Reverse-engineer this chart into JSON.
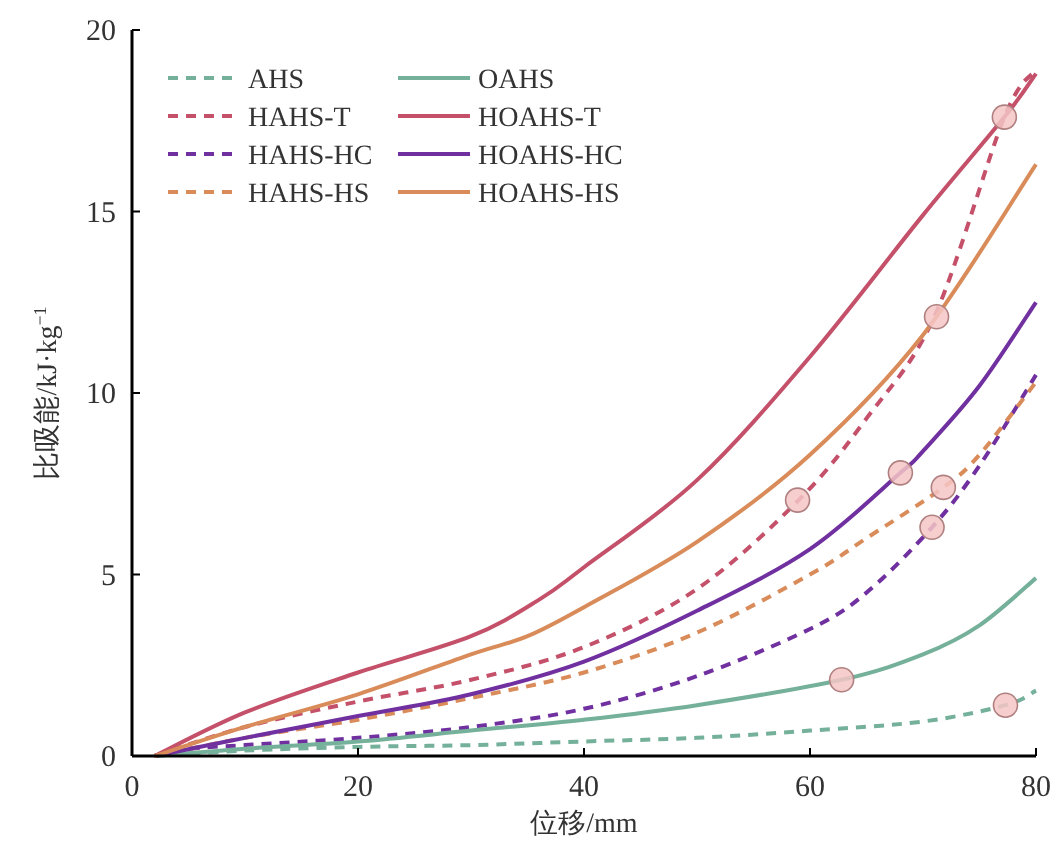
{
  "chart_data": {
    "type": "line",
    "xlabel": "位移/mm",
    "ylabel": "比吸能/kJ·kg$^{−1}$",
    "xlim": [
      0,
      80
    ],
    "ylim": [
      0,
      20
    ],
    "xticks": [
      0,
      20,
      40,
      60,
      80
    ],
    "yticks": [
      0,
      5,
      10,
      15,
      20
    ],
    "grid": false,
    "legend": "top left",
    "series": [
      {
        "name": "AHS",
        "color": "#74b09a",
        "line_style": "dashed",
        "x": [
          2,
          10,
          20,
          30,
          40,
          50,
          60,
          70,
          77.3,
          80
        ],
        "values": [
          0,
          0.15,
          0.25,
          0.3,
          0.4,
          0.5,
          0.7,
          0.95,
          1.4,
          1.8
        ]
      },
      {
        "name": "HAHS-T",
        "color": "#c4506a",
        "line_style": "dashed",
        "x": [
          2,
          10,
          20,
          30,
          40,
          50,
          59,
          65,
          71,
          77.2,
          80
        ],
        "values": [
          0,
          0.8,
          1.5,
          2.1,
          3.0,
          4.6,
          7.05,
          9.3,
          12.1,
          17.6,
          18.9
        ]
      },
      {
        "name": "HAHS-HC",
        "color": "#7030a0",
        "line_style": "dashed",
        "x": [
          2,
          5,
          10,
          20,
          30,
          40,
          50,
          60,
          65,
          70.8,
          75,
          80
        ],
        "values": [
          0,
          0.2,
          0.3,
          0.5,
          0.8,
          1.3,
          2.2,
          3.5,
          4.5,
          6.3,
          8.0,
          10.5
        ]
      },
      {
        "name": "HAHS-HS",
        "color": "#d98c5a",
        "line_style": "dashed",
        "x": [
          2,
          10,
          20,
          30,
          40,
          50,
          60,
          65,
          71.8,
          75,
          80
        ],
        "values": [
          0,
          0.5,
          1.0,
          1.6,
          2.3,
          3.4,
          5.0,
          6.0,
          7.4,
          8.3,
          10.3
        ]
      },
      {
        "name": "OAHS",
        "color": "#74b09a",
        "line_style": "solid",
        "x": [
          2,
          10,
          20,
          30,
          40,
          50,
          62.8,
          70,
          75,
          80
        ],
        "values": [
          0,
          0.2,
          0.4,
          0.7,
          1.0,
          1.4,
          2.1,
          2.8,
          3.6,
          4.9
        ]
      },
      {
        "name": "HOAHS-T",
        "color": "#c4506a",
        "line_style": "solid",
        "x": [
          2,
          10,
          20,
          30,
          36,
          40,
          50,
          60,
          70,
          77.2,
          80
        ],
        "values": [
          0,
          1.2,
          2.3,
          3.3,
          4.3,
          5.2,
          7.6,
          11.0,
          14.9,
          17.6,
          18.8
        ]
      },
      {
        "name": "HOAHS-HC",
        "color": "#7030a0",
        "line_style": "solid",
        "x": [
          2,
          10,
          20,
          30,
          40,
          50,
          60,
          68,
          70,
          75,
          80
        ],
        "values": [
          0,
          0.5,
          1.1,
          1.7,
          2.6,
          4.0,
          5.7,
          7.8,
          8.4,
          10.2,
          12.5
        ]
      },
      {
        "name": "HOAHS-HS",
        "color": "#d98c5a",
        "line_style": "solid",
        "x": [
          2,
          10,
          20,
          30,
          35,
          40,
          50,
          60,
          70,
          80
        ],
        "values": [
          0,
          0.8,
          1.7,
          2.8,
          3.3,
          4.1,
          5.9,
          8.3,
          11.6,
          16.3
        ]
      },
      {
        "type": "scatter",
        "marker": "circle",
        "color": "#f4c6c6",
        "x": [
          58.9,
          68,
          71.8,
          70.8,
          62.8,
          77.3,
          77.2,
          71.2
        ],
        "values": [
          7.05,
          7.8,
          7.4,
          6.3,
          2.1,
          1.4,
          17.6,
          12.1
        ]
      }
    ]
  }
}
